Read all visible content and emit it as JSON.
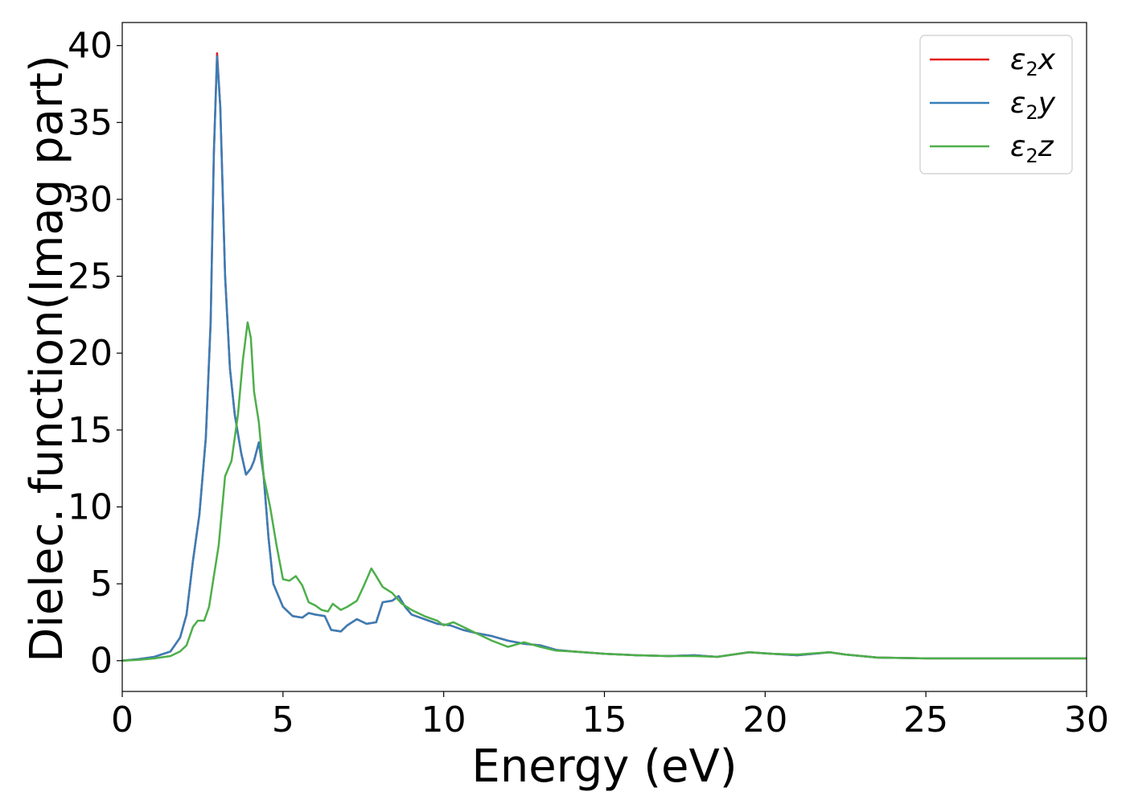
{
  "chart_data": {
    "type": "line",
    "xlabel": "Energy (eV)",
    "ylabel": "Dielec. function(Imag part)",
    "xlim": [
      0,
      30
    ],
    "ylim": [
      -2,
      41.5
    ],
    "xticks": [
      0,
      5,
      10,
      15,
      20,
      25,
      30
    ],
    "yticks": [
      0,
      5,
      10,
      15,
      20,
      25,
      30,
      35,
      40
    ],
    "grid": false,
    "legend_position": "top-right",
    "series": [
      {
        "name": "ε2x",
        "color": "#e41a1c",
        "points": [
          [
            0,
            0
          ],
          [
            0.5,
            0.1
          ],
          [
            1.0,
            0.25
          ],
          [
            1.5,
            0.6
          ],
          [
            1.8,
            1.5
          ],
          [
            2.0,
            3
          ],
          [
            2.2,
            6.5
          ],
          [
            2.4,
            9.5
          ],
          [
            2.6,
            14.5
          ],
          [
            2.75,
            22
          ],
          [
            2.85,
            33
          ],
          [
            2.95,
            39.5
          ],
          [
            3.05,
            36
          ],
          [
            3.2,
            25
          ],
          [
            3.35,
            19
          ],
          [
            3.5,
            16
          ],
          [
            3.7,
            13.5
          ],
          [
            3.85,
            12.1
          ],
          [
            4.0,
            12.5
          ],
          [
            4.1,
            13
          ],
          [
            4.25,
            14.2
          ],
          [
            4.4,
            12
          ],
          [
            4.55,
            8
          ],
          [
            4.7,
            5
          ],
          [
            5.0,
            3.5
          ],
          [
            5.3,
            2.9
          ],
          [
            5.6,
            2.8
          ],
          [
            5.8,
            3.1
          ],
          [
            6.0,
            3.0
          ],
          [
            6.3,
            2.9
          ],
          [
            6.5,
            2.0
          ],
          [
            6.8,
            1.9
          ],
          [
            7.0,
            2.3
          ],
          [
            7.3,
            2.7
          ],
          [
            7.6,
            2.4
          ],
          [
            7.9,
            2.5
          ],
          [
            8.1,
            3.8
          ],
          [
            8.4,
            3.9
          ],
          [
            8.6,
            4.2
          ],
          [
            8.8,
            3.5
          ],
          [
            9.0,
            3.0
          ],
          [
            9.4,
            2.7
          ],
          [
            9.8,
            2.4
          ],
          [
            10.2,
            2.3
          ],
          [
            10.6,
            2.0
          ],
          [
            11.0,
            1.8
          ],
          [
            11.5,
            1.6
          ],
          [
            12.0,
            1.3
          ],
          [
            12.5,
            1.1
          ],
          [
            13.0,
            1.0
          ],
          [
            13.5,
            0.7
          ],
          [
            14.0,
            0.6
          ],
          [
            15.0,
            0.45
          ],
          [
            16.0,
            0.35
          ],
          [
            17.0,
            0.3
          ],
          [
            17.8,
            0.35
          ],
          [
            18.5,
            0.25
          ],
          [
            19.5,
            0.55
          ],
          [
            20.2,
            0.45
          ],
          [
            21.0,
            0.35
          ],
          [
            22.0,
            0.55
          ],
          [
            22.5,
            0.4
          ],
          [
            23.5,
            0.2
          ],
          [
            25.0,
            0.15
          ],
          [
            27.0,
            0.15
          ],
          [
            28.5,
            0.15
          ],
          [
            30.0,
            0.15
          ]
        ]
      },
      {
        "name": "ε2y",
        "color": "#377eb8",
        "points": [
          [
            0,
            0
          ],
          [
            0.5,
            0.1
          ],
          [
            1.0,
            0.25
          ],
          [
            1.5,
            0.6
          ],
          [
            1.8,
            1.5
          ],
          [
            2.0,
            3
          ],
          [
            2.2,
            6.5
          ],
          [
            2.4,
            9.5
          ],
          [
            2.6,
            14.5
          ],
          [
            2.75,
            22
          ],
          [
            2.85,
            33
          ],
          [
            2.95,
            39.3
          ],
          [
            3.05,
            36
          ],
          [
            3.2,
            25
          ],
          [
            3.35,
            19
          ],
          [
            3.5,
            16
          ],
          [
            3.7,
            13.5
          ],
          [
            3.85,
            12.1
          ],
          [
            4.0,
            12.5
          ],
          [
            4.1,
            13
          ],
          [
            4.25,
            14.2
          ],
          [
            4.4,
            12
          ],
          [
            4.55,
            8
          ],
          [
            4.7,
            5
          ],
          [
            5.0,
            3.5
          ],
          [
            5.3,
            2.9
          ],
          [
            5.6,
            2.8
          ],
          [
            5.8,
            3.1
          ],
          [
            6.0,
            3.0
          ],
          [
            6.3,
            2.9
          ],
          [
            6.5,
            2.0
          ],
          [
            6.8,
            1.9
          ],
          [
            7.0,
            2.3
          ],
          [
            7.3,
            2.7
          ],
          [
            7.6,
            2.4
          ],
          [
            7.9,
            2.5
          ],
          [
            8.1,
            3.8
          ],
          [
            8.4,
            3.9
          ],
          [
            8.6,
            4.2
          ],
          [
            8.8,
            3.5
          ],
          [
            9.0,
            3.0
          ],
          [
            9.4,
            2.7
          ],
          [
            9.8,
            2.4
          ],
          [
            10.2,
            2.3
          ],
          [
            10.6,
            2.0
          ],
          [
            11.0,
            1.8
          ],
          [
            11.5,
            1.6
          ],
          [
            12.0,
            1.3
          ],
          [
            12.5,
            1.1
          ],
          [
            13.0,
            1.0
          ],
          [
            13.5,
            0.7
          ],
          [
            14.0,
            0.6
          ],
          [
            15.0,
            0.45
          ],
          [
            16.0,
            0.35
          ],
          [
            17.0,
            0.3
          ],
          [
            17.8,
            0.35
          ],
          [
            18.5,
            0.25
          ],
          [
            19.5,
            0.55
          ],
          [
            20.2,
            0.45
          ],
          [
            21.0,
            0.35
          ],
          [
            22.0,
            0.55
          ],
          [
            22.5,
            0.4
          ],
          [
            23.5,
            0.2
          ],
          [
            25.0,
            0.15
          ],
          [
            27.0,
            0.15
          ],
          [
            28.5,
            0.15
          ],
          [
            30.0,
            0.15
          ]
        ]
      },
      {
        "name": "ε2z",
        "color": "#4daf4a",
        "points": [
          [
            0,
            0
          ],
          [
            0.5,
            0.05
          ],
          [
            1.0,
            0.15
          ],
          [
            1.5,
            0.3
          ],
          [
            1.8,
            0.6
          ],
          [
            2.0,
            1.0
          ],
          [
            2.2,
            2.2
          ],
          [
            2.35,
            2.6
          ],
          [
            2.55,
            2.6
          ],
          [
            2.7,
            3.5
          ],
          [
            2.85,
            5.5
          ],
          [
            3.0,
            7.5
          ],
          [
            3.2,
            12
          ],
          [
            3.4,
            13
          ],
          [
            3.6,
            16
          ],
          [
            3.75,
            19.5
          ],
          [
            3.9,
            22
          ],
          [
            4.0,
            21
          ],
          [
            4.1,
            17.5
          ],
          [
            4.25,
            15.5
          ],
          [
            4.4,
            12
          ],
          [
            4.6,
            10
          ],
          [
            4.8,
            7.5
          ],
          [
            5.0,
            5.3
          ],
          [
            5.2,
            5.2
          ],
          [
            5.4,
            5.5
          ],
          [
            5.6,
            4.9
          ],
          [
            5.8,
            3.8
          ],
          [
            6.0,
            3.6
          ],
          [
            6.2,
            3.3
          ],
          [
            6.4,
            3.2
          ],
          [
            6.55,
            3.7
          ],
          [
            6.8,
            3.3
          ],
          [
            7.0,
            3.5
          ],
          [
            7.3,
            3.9
          ],
          [
            7.5,
            4.8
          ],
          [
            7.75,
            6.0
          ],
          [
            7.9,
            5.5
          ],
          [
            8.1,
            4.8
          ],
          [
            8.4,
            4.4
          ],
          [
            8.7,
            3.7
          ],
          [
            9.0,
            3.3
          ],
          [
            9.4,
            2.9
          ],
          [
            9.8,
            2.6
          ],
          [
            10.0,
            2.3
          ],
          [
            10.3,
            2.5
          ],
          [
            10.6,
            2.2
          ],
          [
            11.0,
            1.8
          ],
          [
            11.5,
            1.3
          ],
          [
            12.0,
            0.9
          ],
          [
            12.5,
            1.2
          ],
          [
            13.0,
            0.9
          ],
          [
            13.5,
            0.65
          ],
          [
            14.0,
            0.6
          ],
          [
            15.0,
            0.45
          ],
          [
            16.0,
            0.35
          ],
          [
            17.0,
            0.3
          ],
          [
            17.8,
            0.3
          ],
          [
            18.5,
            0.25
          ],
          [
            19.5,
            0.55
          ],
          [
            20.2,
            0.45
          ],
          [
            21.0,
            0.4
          ],
          [
            22.0,
            0.55
          ],
          [
            22.5,
            0.4
          ],
          [
            23.5,
            0.2
          ],
          [
            25.0,
            0.15
          ],
          [
            27.0,
            0.15
          ],
          [
            28.5,
            0.15
          ],
          [
            30.0,
            0.15
          ]
        ]
      }
    ]
  }
}
